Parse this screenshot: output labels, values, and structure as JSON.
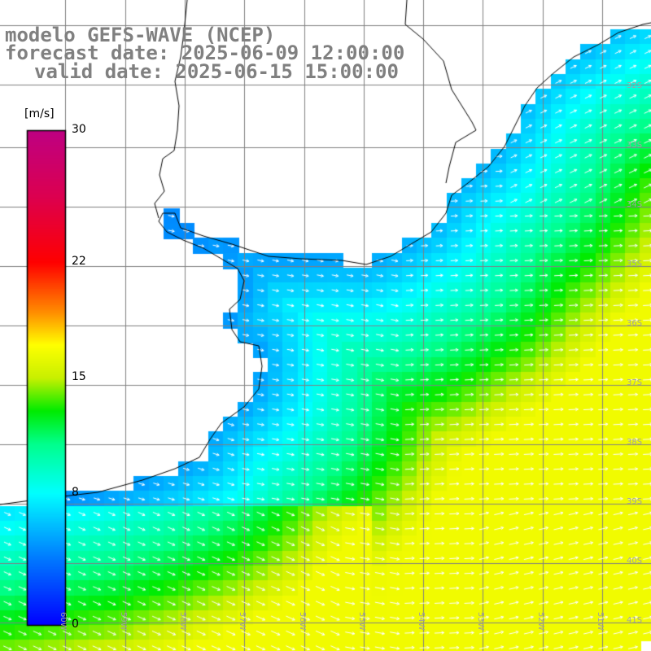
{
  "title": {
    "line1": "modelo GEFS-WAVE (NCEP)",
    "line2": "forecast date: 2025-06-09 12:00:00",
    "line3": "valid date: 2025-06-15 15:00:00"
  },
  "colorbar": {
    "unit": "[m/s]",
    "ticks": [
      {
        "label": "30",
        "value": 30
      },
      {
        "label": "22",
        "value": 22
      },
      {
        "label": "15",
        "value": 15
      },
      {
        "label": "8",
        "value": 8
      },
      {
        "label": "0",
        "value": 0
      }
    ],
    "range": [
      0,
      30
    ]
  },
  "map": {
    "lat_labels": [
      "32S",
      "33S",
      "34S",
      "35S",
      "36S",
      "37S",
      "38S",
      "39S",
      "40S",
      "41S"
    ],
    "lon_labels": [
      "60W",
      "59W",
      "58W",
      "57W",
      "56W",
      "55W",
      "54W",
      "53W",
      "52W",
      "51W"
    ],
    "field": "wind speed with direction arrows",
    "arrow_direction": "toward east / southeast",
    "land_color": "#ffffff",
    "grid_color": "#808080"
  }
}
